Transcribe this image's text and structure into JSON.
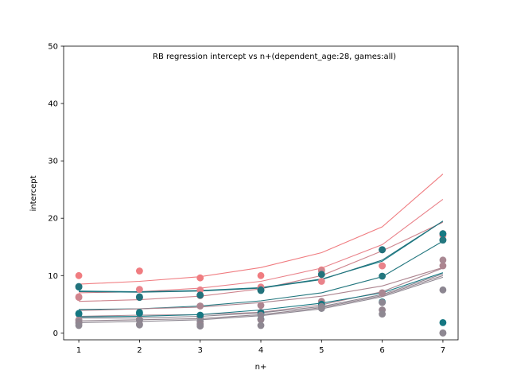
{
  "chart_data": {
    "type": "scatter",
    "title": "RB regression intercept vs n+(dependent_age:28, games:all)",
    "xlabel": "n+",
    "ylabel": "intercept",
    "xlim": [
      0.75,
      7.25
    ],
    "ylim": [
      -1.2,
      50
    ],
    "xticks": [
      1,
      2,
      3,
      4,
      5,
      6,
      7
    ],
    "yticks": [
      0,
      10,
      20,
      30,
      40,
      50
    ],
    "grid": false,
    "legend": "none",
    "x": [
      1,
      2,
      3,
      4,
      5,
      6,
      7
    ],
    "series": [
      {
        "color": "#f07c80",
        "points": [
          10.0,
          10.8,
          9.6,
          10.0,
          11.0,
          11.7,
          17.3
        ],
        "fit": [
          8.5,
          9.0,
          9.8,
          11.4,
          14.0,
          18.5,
          27.7
        ]
      },
      {
        "color": "#e9828a",
        "points": [
          6.3,
          7.6,
          7.5,
          8.0,
          9.0,
          11.7,
          17.0
        ],
        "fit": [
          7.0,
          7.2,
          7.8,
          9.0,
          11.3,
          15.4,
          23.3
        ]
      },
      {
        "color": "#ce858e",
        "points": [
          6.2,
          6.2,
          6.5,
          7.6,
          10.8,
          14.5,
          17.3
        ],
        "fit": [
          5.5,
          5.8,
          6.4,
          7.7,
          10.0,
          14.3,
          19.3
        ]
      },
      {
        "color": "#167a84",
        "points": [
          8.0,
          6.3,
          6.6,
          7.5,
          10.2,
          14.5,
          17.3
        ],
        "fit": [
          7.3,
          7.2,
          7.4,
          7.9,
          9.4,
          12.5,
          19.5
        ]
      },
      {
        "color": "#22727c",
        "points": [
          8.1,
          6.2,
          6.6,
          7.4,
          10.2,
          14.5,
          16.2
        ],
        "fit": [
          7.2,
          7.1,
          7.3,
          7.8,
          9.3,
          12.7,
          19.5
        ]
      },
      {
        "color": "#24777f",
        "points": [
          3.3,
          3.6,
          2.7,
          2.4,
          4.3,
          9.9,
          16.2
        ],
        "fit": [
          4.1,
          4.2,
          4.7,
          5.6,
          7.0,
          9.8,
          16.0
        ]
      },
      {
        "color": "#ad8590",
        "points": [
          2.3,
          2.4,
          4.7,
          4.8,
          5.5,
          7.0,
          11.7
        ],
        "fit": [
          3.9,
          4.2,
          4.5,
          5.3,
          6.4,
          8.2,
          11.4
        ]
      },
      {
        "color": "#a98893",
        "points": [
          2.2,
          2.3,
          2.8,
          3.6,
          4.9,
          6.9,
          12.7
        ],
        "fit": [
          2.9,
          3.1,
          3.2,
          3.6,
          4.9,
          7.2,
          11.3
        ]
      },
      {
        "color": "#157782",
        "points": [
          3.4,
          3.4,
          3.1,
          3.5,
          5.0,
          5.4,
          1.8
        ],
        "fit": [
          2.8,
          2.9,
          3.2,
          4.0,
          5.2,
          7.0,
          10.5
        ]
      },
      {
        "color": "#8c8691",
        "points": [
          1.9,
          2.2,
          2.0,
          3.1,
          4.6,
          5.3,
          7.5
        ],
        "fit": [
          2.6,
          2.6,
          2.9,
          3.5,
          4.6,
          6.7,
          10.3
        ]
      },
      {
        "color": "#94848f",
        "points": [
          1.7,
          1.5,
          1.5,
          2.3,
          4.3,
          4.0,
          0.0
        ],
        "fit": [
          2.1,
          2.3,
          2.5,
          3.2,
          4.4,
          6.5,
          10.0
        ]
      },
      {
        "color": "#8e8892",
        "points": [
          1.3,
          1.4,
          1.2,
          1.3,
          4.3,
          3.3,
          0.0
        ],
        "fit": [
          1.8,
          2.0,
          2.3,
          3.0,
          4.2,
          6.3,
          9.7
        ]
      }
    ]
  }
}
